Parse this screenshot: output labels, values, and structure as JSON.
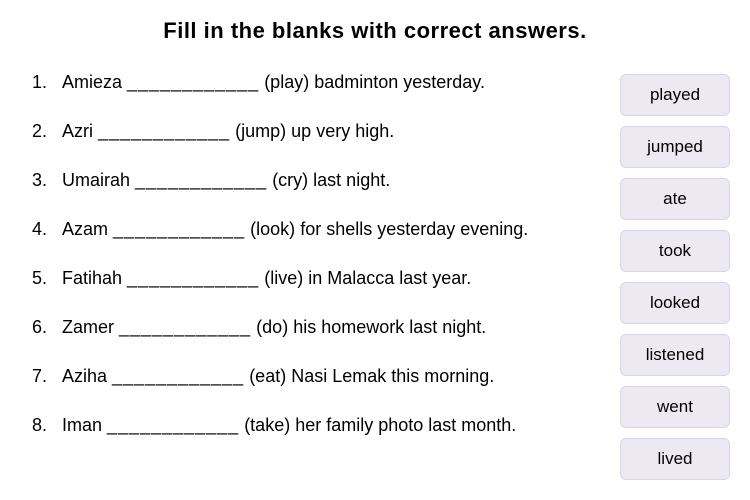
{
  "title": "Fill in the blanks with correct answers.",
  "blank": "____________",
  "questions": [
    {
      "num": "1.",
      "pre": "Amieza ",
      "verb": "(play)",
      "post": " badminton yesterday."
    },
    {
      "num": "2.",
      "pre": "Azri ",
      "verb": "(jump)",
      "post": " up very high."
    },
    {
      "num": "3.",
      "pre": "Umairah ",
      "verb": "(cry)",
      "post": " last night."
    },
    {
      "num": "4.",
      "pre": "Azam ",
      "verb": "(look)",
      "post": " for shells yesterday evening."
    },
    {
      "num": "5.",
      "pre": "Fatihah ",
      "verb": "(live)",
      "post": " in Malacca last year."
    },
    {
      "num": "6.",
      "pre": "Zamer ",
      "verb": "(do)",
      "post": " his homework last night."
    },
    {
      "num": "7.",
      "pre": "Aziha ",
      "verb": "(eat)",
      "post": " Nasi Lemak this morning."
    },
    {
      "num": "8.",
      "pre": "Iman ",
      "verb": "(take)",
      "post": " her family photo last month."
    }
  ],
  "wordbank": [
    "played",
    "jumped",
    "ate",
    "took",
    "looked",
    "listened",
    "went",
    "lived"
  ],
  "colors": {
    "background": "#ffffff",
    "text": "#000000",
    "chip_bg": "#ece9f3",
    "chip_border": "#d8d4e3"
  },
  "fontsizes": {
    "title": 22,
    "question": 18,
    "chip": 17
  }
}
